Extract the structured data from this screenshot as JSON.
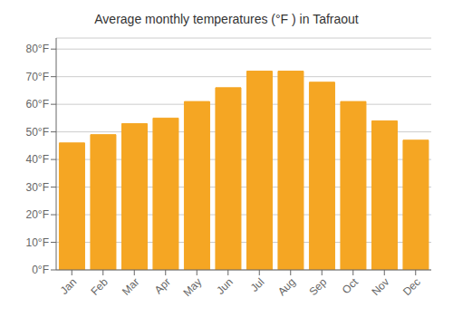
{
  "chart_data": {
    "type": "bar",
    "title": "Average monthly temperatures (°F ) in Tafraout",
    "categories": [
      "Jan",
      "Feb",
      "Mar",
      "Apr",
      "May",
      "Jun",
      "Jul",
      "Aug",
      "Sep",
      "Oct",
      "Nov",
      "Dec"
    ],
    "values": [
      46,
      49,
      53,
      55,
      61,
      66,
      72,
      72,
      68,
      61,
      54,
      47
    ],
    "color": "#F5A623",
    "ylim": [
      0,
      84
    ],
    "yticks": [
      {
        "value": 0,
        "label": "0°F"
      },
      {
        "value": 10,
        "label": "10°F"
      },
      {
        "value": 20,
        "label": "20°F"
      },
      {
        "value": 30,
        "label": "30°F"
      },
      {
        "value": 40,
        "label": "40°F"
      },
      {
        "value": 50,
        "label": "50°F"
      },
      {
        "value": 60,
        "label": "60°F"
      },
      {
        "value": 70,
        "label": "70°F"
      },
      {
        "value": 80,
        "label": "80°F"
      }
    ],
    "grid": true
  }
}
